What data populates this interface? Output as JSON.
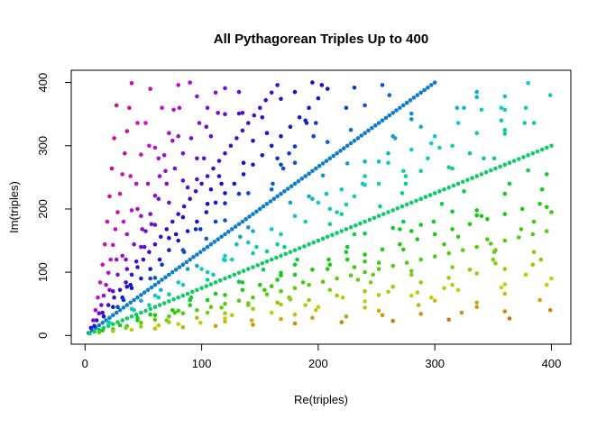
{
  "chart_data": {
    "type": "scatter",
    "title": "All Pythagorean Triples Up to 400",
    "xlabel": "Re(triples)",
    "ylabel": "Im(triples)",
    "xlim": [
      0,
      400
    ],
    "ylim": [
      0,
      400
    ],
    "x_ticks": [
      "0",
      "100",
      "200",
      "300",
      "400"
    ],
    "x_tick_values": [
      0,
      100,
      200,
      300,
      400
    ],
    "y_ticks": [
      "0",
      "100",
      "200",
      "300",
      "400"
    ],
    "y_tick_values": [
      0,
      100,
      200,
      300,
      400
    ],
    "grid": false,
    "legend": "none",
    "point_shape": "filled-circle",
    "point_radius_px": 2.3,
    "max_leg": 400,
    "points_rule": "every point (a,b) such that a^2+b^2 is a perfect square, 1<=a,b<=400; i.e. all integer multiples k*(p,q) and mirrors k*(q,p) of the primitive pairs with both legs <= 400",
    "primitive_leg_pairs": [
      [
        3,
        4
      ],
      [
        5,
        12
      ],
      [
        8,
        15
      ],
      [
        7,
        24
      ],
      [
        20,
        21
      ],
      [
        9,
        40
      ],
      [
        12,
        35
      ],
      [
        11,
        60
      ],
      [
        28,
        45
      ],
      [
        33,
        56
      ],
      [
        13,
        84
      ],
      [
        16,
        63
      ],
      [
        48,
        55
      ],
      [
        39,
        80
      ],
      [
        15,
        112
      ],
      [
        36,
        77
      ],
      [
        65,
        72
      ],
      [
        17,
        144
      ],
      [
        20,
        99
      ],
      [
        60,
        91
      ],
      [
        51,
        140
      ],
      [
        19,
        180
      ],
      [
        44,
        117
      ],
      [
        88,
        105
      ],
      [
        85,
        132
      ],
      [
        57,
        176
      ],
      [
        21,
        220
      ],
      [
        24,
        143
      ],
      [
        119,
        120
      ],
      [
        95,
        168
      ],
      [
        23,
        264
      ],
      [
        52,
        165
      ],
      [
        104,
        153
      ],
      [
        133,
        156
      ],
      [
        105,
        208
      ],
      [
        69,
        260
      ],
      [
        25,
        312
      ],
      [
        28,
        195
      ],
      [
        84,
        187
      ],
      [
        140,
        171
      ],
      [
        115,
        252
      ],
      [
        75,
        308
      ],
      [
        27,
        364
      ],
      [
        60,
        221
      ],
      [
        120,
        209
      ],
      [
        161,
        240
      ],
      [
        32,
        255
      ],
      [
        96,
        247
      ],
      [
        160,
        231
      ],
      [
        207,
        224
      ],
      [
        175,
        288
      ],
      [
        135,
        352
      ],
      [
        68,
        285
      ],
      [
        136,
        273
      ],
      [
        204,
        253
      ],
      [
        225,
        272
      ],
      [
        189,
        340
      ],
      [
        36,
        323
      ],
      [
        180,
        299
      ],
      [
        252,
        275
      ],
      [
        203,
        396
      ],
      [
        76,
        357
      ],
      [
        152,
        345
      ],
      [
        228,
        325
      ],
      [
        297,
        304
      ],
      [
        261,
        380
      ],
      [
        40,
        399
      ],
      [
        120,
        391
      ],
      [
        280,
        351
      ],
      [
        319,
        360
      ],
      [
        336,
        377
      ]
    ],
    "color_rule": {
      "description": "hue varies linearly with the point's angle atan2(y,x): orange near 0 deg, green ~37 deg, cyan 45 deg, blue ~53 deg, crimson near 90 deg",
      "hue_at_0deg": 0.05,
      "hue_at_90deg": 0.93,
      "saturation": 0.93,
      "value": 0.8
    },
    "colors": {
      "background": "#ffffff",
      "axis": "#000000",
      "text": "#000000",
      "line_3_4_multiples": "#1377c8",
      "line_4_3_multiples": "#0ecb74"
    }
  }
}
